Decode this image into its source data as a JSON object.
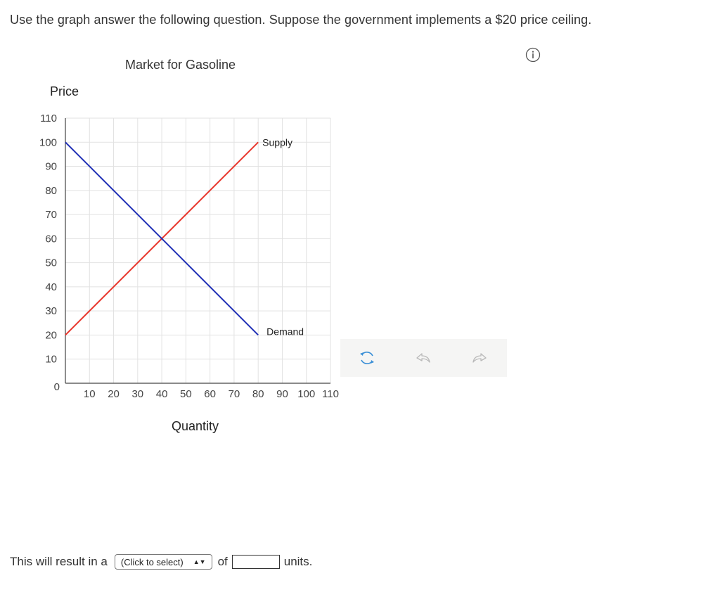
{
  "question": {
    "text": "Use the graph answer the following question. Suppose the government implements a $20 price ceiling."
  },
  "info_icon": "info-circle-icon",
  "chart_data": {
    "type": "line",
    "title": "Market for Gasoline",
    "ylabel": "Price",
    "xlabel": "Quantity",
    "xlim": [
      0,
      110
    ],
    "ylim": [
      0,
      110
    ],
    "x_ticks": [
      "10",
      "20",
      "30",
      "40",
      "50",
      "60",
      "70",
      "80",
      "90",
      "100",
      "110"
    ],
    "y_ticks": [
      "110",
      "100",
      "90",
      "80",
      "70",
      "60",
      "50",
      "40",
      "30",
      "20",
      "10"
    ],
    "origin_label": "0",
    "grid": true,
    "series": [
      {
        "name": "Supply",
        "color": "#e8352b",
        "points": [
          [
            0,
            20
          ],
          [
            80,
            100
          ]
        ]
      },
      {
        "name": "Demand",
        "color": "#1f2fb5",
        "points": [
          [
            0,
            100
          ],
          [
            80,
            20
          ]
        ]
      }
    ]
  },
  "tools": {
    "reset": "reset-icon",
    "undo": "undo-icon",
    "redo": "redo-icon"
  },
  "answer": {
    "prefix": "This will result in a",
    "select_value": "(Click to select)",
    "middle": "of",
    "input_value": "",
    "suffix": "units."
  }
}
